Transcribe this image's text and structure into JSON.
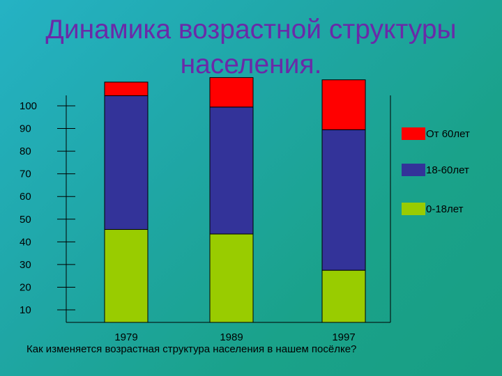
{
  "title_line1": "Динамика возрастной структуры",
  "title_line2": "населения.",
  "question": "Как изменяется возрастная структура населения в нашем посёлке?",
  "chart_data": {
    "type": "bar",
    "stacked": true,
    "categories": [
      "1979",
      "1989",
      "1997"
    ],
    "y_ticks": [
      10,
      20,
      30,
      40,
      50,
      60,
      70,
      80,
      90,
      100
    ],
    "series": [
      {
        "name": "0-18лет",
        "values": [
          41,
          39,
          23
        ],
        "color": "#99cc00"
      },
      {
        "name": "18-60лет",
        "values": [
          59,
          56,
          62
        ],
        "color": "#333399"
      },
      {
        "name": "От 60лет",
        "values": [
          6,
          13,
          22
        ],
        "color": "#ff0000"
      }
    ],
    "legend_order": [
      "От 60лет",
      "18-60лет",
      "0-18лет"
    ],
    "legend_position": "right"
  }
}
